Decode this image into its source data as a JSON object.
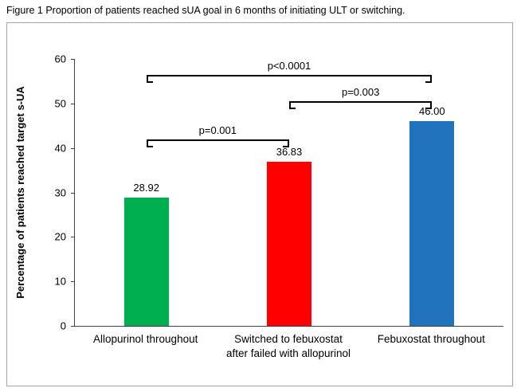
{
  "figure": {
    "caption": "Figure 1 Proportion of patients reached sUA goal in 6 months of initiating ULT or switching."
  },
  "chart_data": {
    "type": "bar",
    "title": "",
    "categories": [
      "Allopurinol throughout",
      "Switched to febuxostat\nafter failed with allopurinol",
      "Febuxostat throughout"
    ],
    "values": [
      28.92,
      36.83,
      46.0
    ],
    "value_labels": [
      "28.92",
      "36.83",
      "46.00"
    ],
    "colors": [
      "#00B050",
      "#FF0000",
      "#2073BC"
    ],
    "ylabel": "Percentage of patients reached target s-UA",
    "xlabel": "",
    "ylim": [
      0,
      60
    ],
    "yticks": [
      0,
      10,
      20,
      30,
      40,
      50,
      60
    ],
    "grid": false,
    "legend": false,
    "annotations": [
      {
        "label": "p=0.001",
        "from": 0,
        "to": 1,
        "y": 42
      },
      {
        "label": "p=0.003",
        "from": 1,
        "to": 2,
        "y": 50.5
      },
      {
        "label": "p<0.0001",
        "from": 0,
        "to": 2,
        "y": 56.5
      }
    ]
  }
}
